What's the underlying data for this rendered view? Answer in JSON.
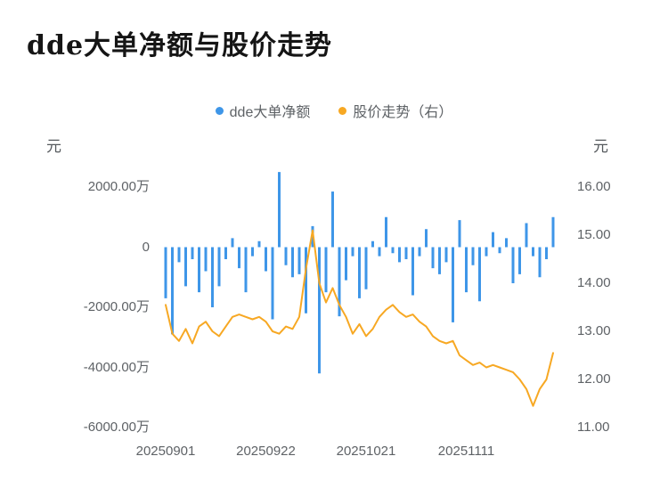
{
  "page": {
    "title": "dde大单净额与股价走势"
  },
  "chart_data": {
    "type": "bar",
    "title": "dde大单净额与股价走势",
    "legend_position": "top-center",
    "grid": false,
    "x_dates": [
      "20250901",
      "20250902",
      "20250903",
      "20250904",
      "20250905",
      "20250908",
      "20250909",
      "20250910",
      "20250911",
      "20250912",
      "20250915",
      "20250916",
      "20250917",
      "20250918",
      "20250919",
      "20250922",
      "20250923",
      "20250924",
      "20250925",
      "20250926",
      "20250929",
      "20250930",
      "20251009",
      "20251010",
      "20251013",
      "20251014",
      "20251015",
      "20251016",
      "20251017",
      "20251020",
      "20251021",
      "20251022",
      "20251023",
      "20251024",
      "20251027",
      "20251028",
      "20251029",
      "20251030",
      "20251031",
      "20251103",
      "20251104",
      "20251105",
      "20251106",
      "20251107",
      "20251110",
      "20251111",
      "20251112",
      "20251113",
      "20251114",
      "20251117",
      "20251118",
      "20251119",
      "20251120",
      "20251121",
      "20251124",
      "20251125",
      "20251126",
      "20251127",
      "20251128"
    ],
    "x_tick_labels": [
      "20250901",
      "20250922",
      "20251021",
      "20251111"
    ],
    "x_tick_indices": [
      0,
      15,
      30,
      45
    ],
    "left_axis": {
      "unit": "元",
      "tick_labels": [
        "2000.00万",
        "0",
        "-2000.00万",
        "-4000.00万",
        "-6000.00万"
      ],
      "range": [
        -6000,
        2000
      ]
    },
    "right_axis": {
      "unit": "元",
      "tick_labels": [
        "16.00",
        "15.00",
        "14.00",
        "13.00",
        "12.00",
        "11.00"
      ],
      "range": [
        11,
        16
      ]
    },
    "series": [
      {
        "name": "dde大单净额",
        "type": "bar",
        "axis": "left",
        "unit": "万元",
        "color": "#3E96E8",
        "values": [
          -1700,
          -2900,
          -500,
          -1300,
          -400,
          -1500,
          -800,
          -2000,
          -1300,
          -400,
          300,
          -700,
          -1500,
          -300,
          200,
          -800,
          -2400,
          2500,
          -600,
          -1000,
          -900,
          -2200,
          700,
          -4200,
          -1500,
          1850,
          -2300,
          -1100,
          -300,
          -1700,
          -1400,
          200,
          -300,
          1000,
          -200,
          -500,
          -400,
          -1600,
          -300,
          600,
          -700,
          -900,
          -500,
          -2500,
          900,
          -1500,
          -600,
          -1800,
          -300,
          500,
          -200,
          300,
          -1200,
          -900,
          800,
          -300,
          -1000,
          -400,
          1000
        ]
      },
      {
        "name": "股价走势（右）",
        "type": "line",
        "axis": "right",
        "unit": "元",
        "color": "#F7A823",
        "values": [
          13.55,
          12.95,
          12.8,
          13.05,
          12.75,
          13.1,
          13.2,
          13.0,
          12.9,
          13.1,
          13.3,
          13.35,
          13.3,
          13.25,
          13.3,
          13.2,
          13.0,
          12.95,
          13.1,
          13.05,
          13.3,
          14.3,
          15.1,
          14.0,
          13.6,
          13.9,
          13.55,
          13.3,
          12.95,
          13.15,
          12.9,
          13.05,
          13.3,
          13.45,
          13.55,
          13.4,
          13.3,
          13.35,
          13.2,
          13.1,
          12.9,
          12.8,
          12.75,
          12.8,
          12.5,
          12.4,
          12.3,
          12.35,
          12.25,
          12.3,
          12.25,
          12.2,
          12.15,
          12.0,
          11.8,
          11.45,
          11.8,
          12.0,
          12.55
        ]
      }
    ]
  }
}
